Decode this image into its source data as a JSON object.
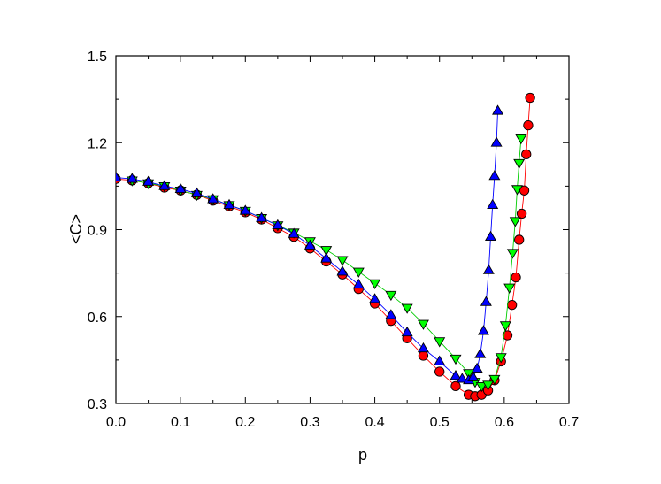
{
  "chart_data": {
    "type": "scatter",
    "title": "",
    "xlabel": "p",
    "ylabel": "<C>",
    "xlim": [
      0.0,
      0.7
    ],
    "ylim": [
      0.3,
      1.5
    ],
    "xticks": [
      0.0,
      0.1,
      0.2,
      0.3,
      0.4,
      0.5,
      0.6,
      0.7
    ],
    "yticks": [
      0.3,
      0.6,
      0.9,
      1.2,
      1.5
    ],
    "xtick_labels": [
      "0.0",
      "0.1",
      "0.2",
      "0.3",
      "0.4",
      "0.5",
      "0.6",
      "0.7"
    ],
    "ytick_labels": [
      "0.3",
      "0.6",
      "0.9",
      "1.2",
      "1.5"
    ],
    "grid": false,
    "legend": "none",
    "series": [
      {
        "marker": "circle",
        "color": "#ff0000",
        "line_color": "#ff0000",
        "x": [
          0.0,
          0.025,
          0.05,
          0.075,
          0.1,
          0.125,
          0.15,
          0.175,
          0.2,
          0.225,
          0.25,
          0.275,
          0.3,
          0.325,
          0.35,
          0.375,
          0.4,
          0.425,
          0.45,
          0.475,
          0.5,
          0.525,
          0.545,
          0.555,
          0.565,
          0.575,
          0.585,
          0.595,
          0.605,
          0.612,
          0.618,
          0.623,
          0.627,
          0.631,
          0.634,
          0.637,
          0.64
        ],
        "y": [
          1.075,
          1.07,
          1.06,
          1.045,
          1.035,
          1.02,
          1.0,
          0.98,
          0.96,
          0.935,
          0.905,
          0.875,
          0.835,
          0.79,
          0.745,
          0.695,
          0.645,
          0.585,
          0.525,
          0.465,
          0.41,
          0.36,
          0.33,
          0.325,
          0.33,
          0.345,
          0.38,
          0.445,
          0.535,
          0.64,
          0.735,
          0.865,
          0.955,
          1.035,
          1.16,
          1.26,
          1.355
        ]
      },
      {
        "marker": "triangle-down",
        "color": "#00ff00",
        "line_color": "#00cc00",
        "x": [
          0.025,
          0.05,
          0.075,
          0.1,
          0.125,
          0.15,
          0.175,
          0.2,
          0.225,
          0.25,
          0.275,
          0.3,
          0.325,
          0.35,
          0.375,
          0.4,
          0.425,
          0.45,
          0.475,
          0.5,
          0.525,
          0.545,
          0.555,
          0.565,
          0.575,
          0.585,
          0.595,
          0.602,
          0.608,
          0.613,
          0.617,
          0.62,
          0.623,
          0.626
        ],
        "y": [
          1.07,
          1.06,
          1.05,
          1.035,
          1.02,
          1.005,
          0.985,
          0.965,
          0.94,
          0.915,
          0.89,
          0.86,
          0.83,
          0.795,
          0.755,
          0.715,
          0.675,
          0.63,
          0.575,
          0.515,
          0.455,
          0.405,
          0.375,
          0.36,
          0.365,
          0.385,
          0.46,
          0.57,
          0.7,
          0.82,
          0.93,
          1.04,
          1.13,
          1.215
        ]
      },
      {
        "marker": "triangle-up",
        "color": "#0000ff",
        "line_color": "#0000ff",
        "x": [
          0.0,
          0.025,
          0.05,
          0.075,
          0.1,
          0.125,
          0.15,
          0.175,
          0.2,
          0.225,
          0.25,
          0.275,
          0.3,
          0.325,
          0.35,
          0.375,
          0.4,
          0.425,
          0.45,
          0.475,
          0.5,
          0.525,
          0.535,
          0.545,
          0.552,
          0.558,
          0.563,
          0.568,
          0.572,
          0.576,
          0.579,
          0.582,
          0.585,
          0.588,
          0.59
        ],
        "y": [
          1.08,
          1.075,
          1.065,
          1.05,
          1.04,
          1.025,
          1.005,
          0.985,
          0.965,
          0.94,
          0.915,
          0.885,
          0.845,
          0.8,
          0.755,
          0.71,
          0.66,
          0.605,
          0.545,
          0.49,
          0.445,
          0.395,
          0.385,
          0.38,
          0.39,
          0.42,
          0.47,
          0.55,
          0.65,
          0.76,
          0.875,
          0.985,
          1.085,
          1.2,
          1.31
        ]
      }
    ]
  }
}
